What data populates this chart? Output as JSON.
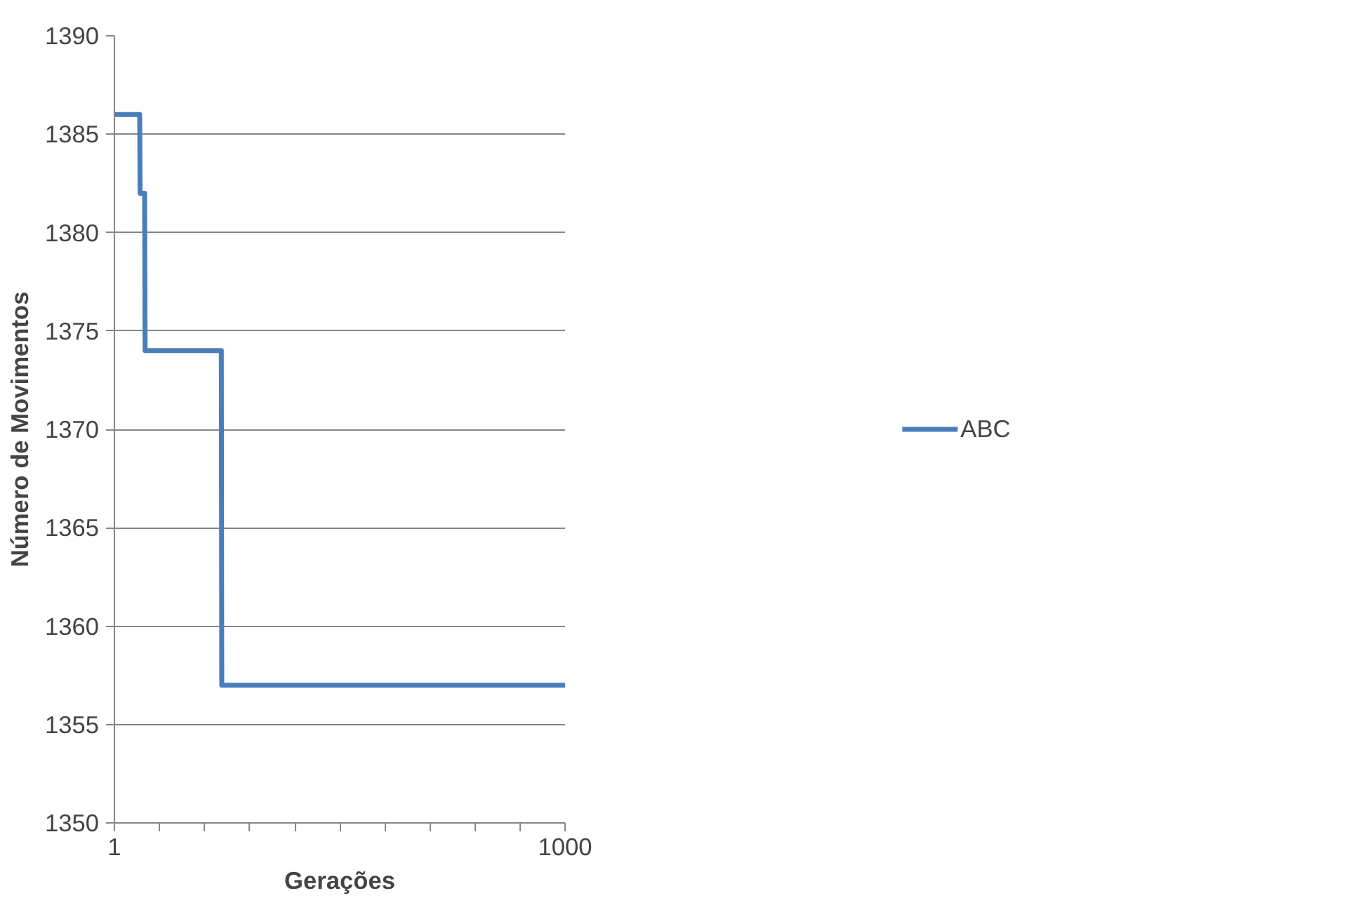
{
  "chart_data": {
    "type": "line",
    "xlabel": "Gerações",
    "ylabel": "Número de Movimentos",
    "x": [
      1,
      57,
      58,
      68,
      69,
      238,
      239,
      1000
    ],
    "series": [
      {
        "name": "ABC",
        "color": "#4a7ebb",
        "values": [
          1386,
          1386,
          1382,
          1382,
          1374,
          1374,
          1357,
          1357
        ]
      }
    ],
    "xlim": [
      1,
      1000
    ],
    "xticks": [
      {
        "value": 1,
        "label": "1"
      },
      {
        "value": 101,
        "label": null
      },
      {
        "value": 201,
        "label": null
      },
      {
        "value": 301,
        "label": null
      },
      {
        "value": 401,
        "label": null
      },
      {
        "value": 501,
        "label": null
      },
      {
        "value": 601,
        "label": null
      },
      {
        "value": 701,
        "label": null
      },
      {
        "value": 801,
        "label": null
      },
      {
        "value": 901,
        "label": null
      },
      {
        "value": 1000,
        "label": "1000"
      }
    ],
    "ylim": [
      1350,
      1390
    ],
    "yticks": [
      1350,
      1355,
      1360,
      1365,
      1370,
      1375,
      1380,
      1385,
      1390
    ],
    "grid": "y",
    "legend": "right",
    "marker": "none",
    "line_style": "solid"
  }
}
